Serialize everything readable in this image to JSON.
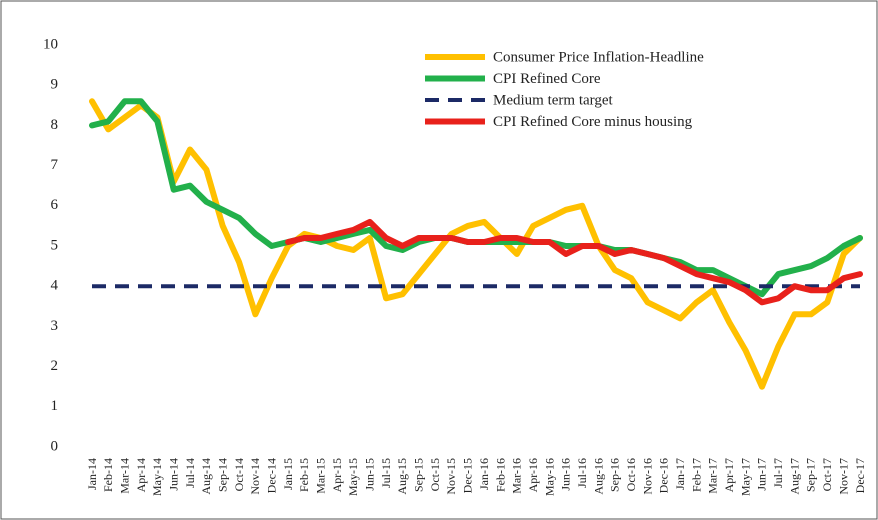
{
  "chart_data": {
    "type": "line",
    "categories": [
      "Jan-14",
      "Feb-14",
      "Mar-14",
      "Apr-14",
      "May-14",
      "Jun-14",
      "Jul-14",
      "Aug-14",
      "Sep-14",
      "Oct-14",
      "Nov-14",
      "Dec-14",
      "Jan-15",
      "Feb-15",
      "Mar-15",
      "Apr-15",
      "May-15",
      "Jun-15",
      "Jul-15",
      "Aug-15",
      "Sep-15",
      "Oct-15",
      "Nov-15",
      "Dec-15",
      "Jan-16",
      "Feb-16",
      "Mar-16",
      "Apr-16",
      "May-16",
      "Jun-16",
      "Jul-16",
      "Aug-16",
      "Sep-16",
      "Oct-16",
      "Nov-16",
      "Dec-16",
      "Jan-17",
      "Feb-17",
      "Mar-17",
      "Apr-17",
      "May-17",
      "Jun-17",
      "Jul-17",
      "Aug-17",
      "Sep-17",
      "Oct-17",
      "Nov-17",
      "Dec-17"
    ],
    "series": [
      {
        "name": "Consumer Price Inflation-Headline",
        "color": "#ffc000",
        "dashed": false,
        "values": [
          8.6,
          7.9,
          8.2,
          8.5,
          8.2,
          6.6,
          7.4,
          6.9,
          5.5,
          4.6,
          3.3,
          4.2,
          5.0,
          5.3,
          5.2,
          5.0,
          4.9,
          5.2,
          3.7,
          3.8,
          4.3,
          4.8,
          5.3,
          5.5,
          5.6,
          5.2,
          4.8,
          5.5,
          5.7,
          5.9,
          6.0,
          5.0,
          4.4,
          4.2,
          3.6,
          3.4,
          3.2,
          3.6,
          3.9,
          3.1,
          2.4,
          1.5,
          2.5,
          3.3,
          3.3,
          3.6,
          4.8,
          5.2
        ]
      },
      {
        "name": "CPI Refined Core",
        "color": "#22b04b",
        "dashed": false,
        "values": [
          8.0,
          8.1,
          8.6,
          8.6,
          8.1,
          6.4,
          6.5,
          6.1,
          5.9,
          5.7,
          5.3,
          5.0,
          5.1,
          5.2,
          5.1,
          5.2,
          5.3,
          5.4,
          5.0,
          4.9,
          5.1,
          5.2,
          5.2,
          5.1,
          5.1,
          5.1,
          5.1,
          5.1,
          5.1,
          5.0,
          5.0,
          5.0,
          4.9,
          4.9,
          4.8,
          4.7,
          4.6,
          4.4,
          4.4,
          4.2,
          4.0,
          3.8,
          4.3,
          4.4,
          4.5,
          4.7,
          5.0,
          5.2
        ]
      },
      {
        "name": "Medium term target",
        "color": "#1c2a66",
        "dashed": true,
        "values": [
          4,
          4,
          4,
          4,
          4,
          4,
          4,
          4,
          4,
          4,
          4,
          4,
          4,
          4,
          4,
          4,
          4,
          4,
          4,
          4,
          4,
          4,
          4,
          4,
          4,
          4,
          4,
          4,
          4,
          4,
          4,
          4,
          4,
          4,
          4,
          4,
          4,
          4,
          4,
          4,
          4,
          4,
          4,
          4,
          4,
          4,
          4,
          4
        ]
      },
      {
        "name": "CPI Refined Core minus housing",
        "color": "#e8211b",
        "dashed": false,
        "values": [
          null,
          null,
          null,
          null,
          null,
          null,
          null,
          null,
          null,
          null,
          null,
          null,
          5.1,
          5.2,
          5.2,
          5.3,
          5.4,
          5.6,
          5.2,
          5.0,
          5.2,
          5.2,
          5.2,
          5.1,
          5.1,
          5.2,
          5.2,
          5.1,
          5.1,
          4.8,
          5.0,
          5.0,
          4.8,
          4.9,
          4.8,
          4.7,
          4.5,
          4.3,
          4.2,
          4.1,
          3.9,
          3.6,
          3.7,
          4.0,
          3.9,
          3.9,
          4.2,
          4.3
        ]
      }
    ],
    "ylim": [
      0,
      10
    ],
    "yticks": [
      0,
      1,
      2,
      3,
      4,
      5,
      6,
      7,
      8,
      9,
      10
    ],
    "grid": false,
    "legend": "top-right"
  }
}
